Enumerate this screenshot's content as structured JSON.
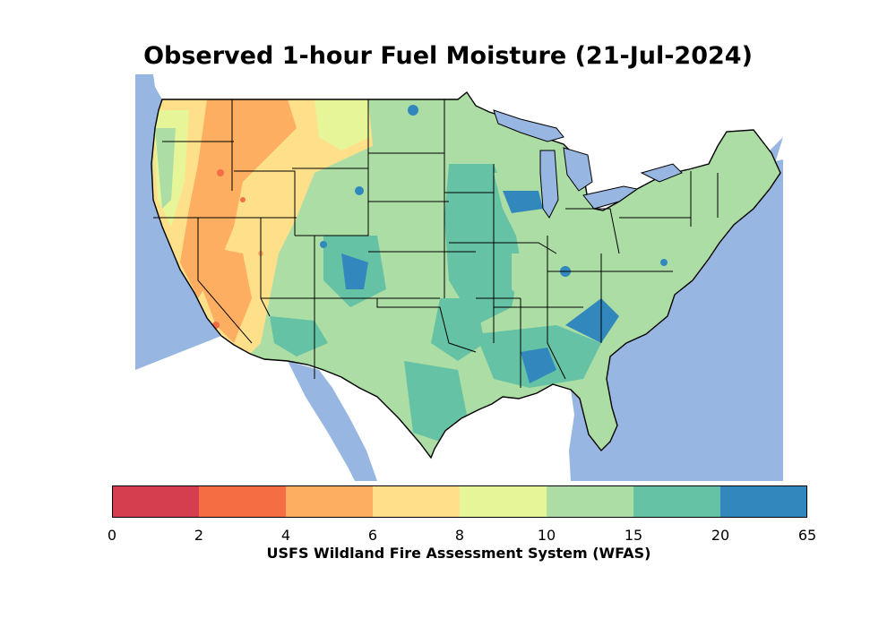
{
  "title": "Observed 1-hour Fuel Moisture (21-Jul-2024)",
  "colorbar": {
    "label": "USFS Wildland Fire Assessment System (WFAS)",
    "ticks": [
      "0",
      "2",
      "4",
      "6",
      "8",
      "10",
      "15",
      "20",
      "65"
    ],
    "bins": [
      {
        "from": 0,
        "to": 2,
        "color": "#d53e4f"
      },
      {
        "from": 2,
        "to": 4,
        "color": "#f46d43"
      },
      {
        "from": 4,
        "to": 6,
        "color": "#fdae61"
      },
      {
        "from": 6,
        "to": 8,
        "color": "#fee08b"
      },
      {
        "from": 8,
        "to": 10,
        "color": "#e6f598"
      },
      {
        "from": 10,
        "to": 15,
        "color": "#abdda4"
      },
      {
        "from": 15,
        "to": 20,
        "color": "#66c2a5"
      },
      {
        "from": 20,
        "to": 65,
        "color": "#3288bd"
      }
    ]
  },
  "colors": {
    "water": "#98b6e2",
    "land_outside": "#ffffff",
    "state_borders": "#000000"
  }
}
